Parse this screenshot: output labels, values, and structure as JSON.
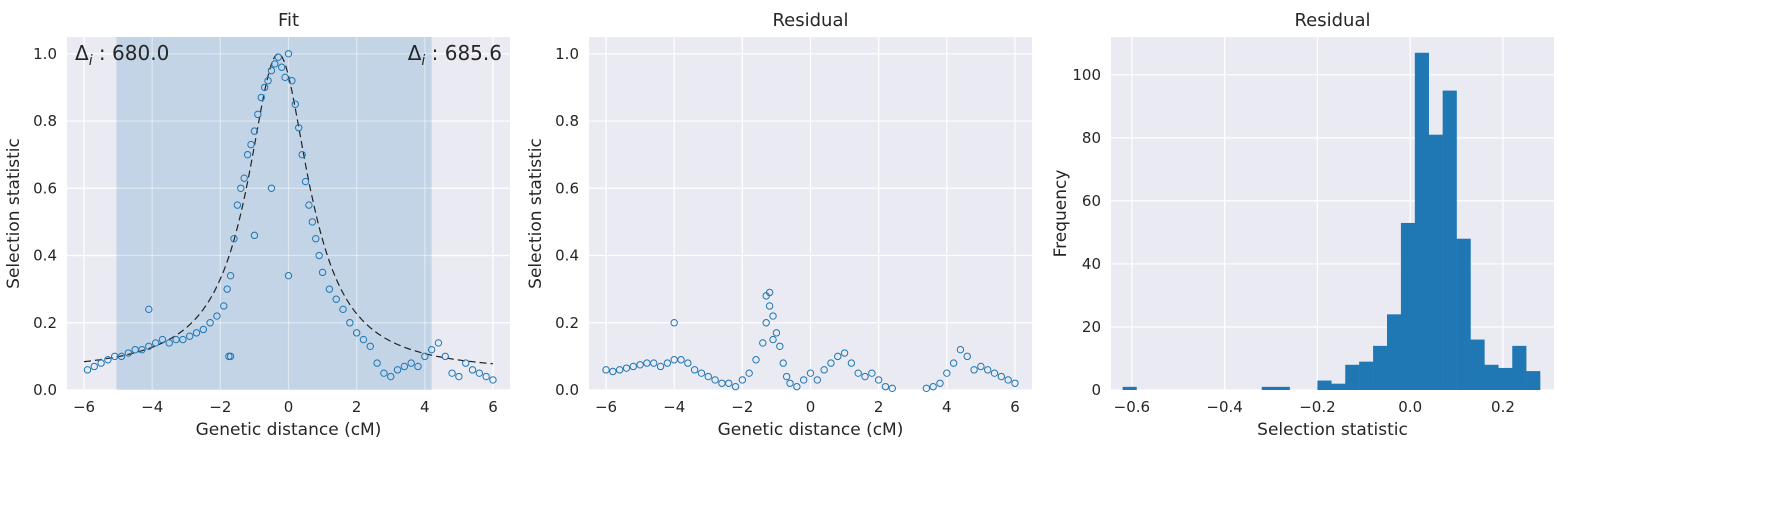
{
  "figure": {
    "colors": {
      "background": "#eaeaf2",
      "grid": "#ffffff",
      "marker": "#1f77b4",
      "fit_line": "#222222",
      "span": "#aec7e0",
      "bar": "#1f77b4"
    }
  },
  "chart_data": [
    {
      "type": "scatter",
      "title": "Fit",
      "xlabel": "Genetic distance (cM)",
      "ylabel": "Selection statistic",
      "xlim": [
        -6.5,
        6.5
      ],
      "ylim": [
        0,
        1.05
      ],
      "xticks": [
        -6,
        -4,
        -2,
        0,
        2,
        4,
        6
      ],
      "xtick_labels": [
        "−6",
        "−4",
        "−2",
        "0",
        "2",
        "4",
        "6"
      ],
      "yticks": [
        0,
        0.2,
        0.4,
        0.6,
        0.8,
        1.0
      ],
      "ytick_labels": [
        "0.0",
        "0.2",
        "0.4",
        "0.6",
        "0.8",
        "1.0"
      ],
      "shaded_span": [
        -5.05,
        4.2
      ],
      "annotations": [
        {
          "text": "Δ",
          "sub": "i",
          "rest": " : 680.0",
          "position": "top-left"
        },
        {
          "text": "Δ",
          "sub": "i",
          "rest": " : 685.6",
          "position": "top-right"
        }
      ],
      "fit_curve": {
        "style": "dashed",
        "peak_x": -0.3,
        "peak_y": 1.0,
        "baseline": 0.05,
        "width_cM": 1.1
      },
      "series": [
        {
          "marker": "open-circle",
          "x": [
            -5.9,
            -5.7,
            -5.5,
            -5.3,
            -5.1,
            -4.9,
            -4.7,
            -4.5,
            -4.3,
            -4.1,
            -3.9,
            -3.7,
            -3.5,
            -3.3,
            -3.1,
            -2.9,
            -2.7,
            -2.5,
            -2.3,
            -2.1,
            -1.9,
            -1.8,
            -1.7,
            -1.6,
            -1.5,
            -1.4,
            -1.3,
            -1.2,
            -1.1,
            -1.0,
            -0.9,
            -0.8,
            -0.7,
            -0.6,
            -0.5,
            -0.4,
            -0.3,
            -0.2,
            -0.1,
            0.0,
            0.1,
            0.2,
            0.3,
            0.4,
            0.5,
            0.6,
            0.7,
            0.8,
            0.9,
            1.0,
            1.2,
            1.4,
            1.6,
            1.8,
            2.0,
            2.2,
            2.4,
            2.6,
            2.8,
            3.0,
            3.2,
            3.4,
            3.6,
            3.8,
            4.0,
            4.2,
            4.4,
            4.6,
            4.8,
            5.0,
            5.2,
            5.4,
            5.6,
            5.8,
            6.0,
            -4.1,
            -1.75,
            -1.7,
            0.0,
            -1.0,
            -0.5
          ],
          "y": [
            0.06,
            0.07,
            0.08,
            0.09,
            0.1,
            0.1,
            0.11,
            0.12,
            0.12,
            0.13,
            0.14,
            0.15,
            0.14,
            0.15,
            0.15,
            0.16,
            0.17,
            0.18,
            0.2,
            0.22,
            0.25,
            0.3,
            0.34,
            0.45,
            0.55,
            0.6,
            0.63,
            0.7,
            0.73,
            0.77,
            0.82,
            0.87,
            0.9,
            0.92,
            0.95,
            0.97,
            0.99,
            0.96,
            0.93,
            1.0,
            0.92,
            0.85,
            0.78,
            0.7,
            0.62,
            0.55,
            0.5,
            0.45,
            0.4,
            0.35,
            0.3,
            0.27,
            0.24,
            0.2,
            0.17,
            0.15,
            0.13,
            0.08,
            0.05,
            0.04,
            0.06,
            0.07,
            0.08,
            0.07,
            0.1,
            0.12,
            0.14,
            0.1,
            0.05,
            0.04,
            0.08,
            0.06,
            0.05,
            0.04,
            0.03,
            0.24,
            0.1,
            0.1,
            0.34,
            0.46,
            0.6
          ]
        }
      ]
    },
    {
      "type": "scatter",
      "title": "Residual",
      "xlabel": "Genetic distance (cM)",
      "ylabel": "Selection statistic",
      "xlim": [
        -6.5,
        6.5
      ],
      "ylim": [
        0,
        1.05
      ],
      "xticks": [
        -6,
        -4,
        -2,
        0,
        2,
        4,
        6
      ],
      "xtick_labels": [
        "−6",
        "−4",
        "−2",
        "0",
        "2",
        "4",
        "6"
      ],
      "yticks": [
        0,
        0.2,
        0.4,
        0.6,
        0.8,
        1.0
      ],
      "ytick_labels": [
        "0.0",
        "0.2",
        "0.4",
        "0.6",
        "0.8",
        "1.0"
      ],
      "series": [
        {
          "marker": "open-circle",
          "x": [
            -6.0,
            -5.8,
            -5.6,
            -5.4,
            -5.2,
            -5.0,
            -4.8,
            -4.6,
            -4.4,
            -4.2,
            -4.0,
            -3.8,
            -3.6,
            -3.4,
            -3.2,
            -3.0,
            -2.8,
            -2.6,
            -2.4,
            -2.2,
            -2.0,
            -1.8,
            -1.6,
            -1.4,
            -1.3,
            -1.2,
            -1.1,
            -1.0,
            -0.9,
            -0.8,
            -0.7,
            -0.6,
            -0.4,
            -0.2,
            0.0,
            0.2,
            0.4,
            0.6,
            0.8,
            1.0,
            1.2,
            1.4,
            1.6,
            1.8,
            2.0,
            2.2,
            2.4,
            3.4,
            3.6,
            3.8,
            4.0,
            4.2,
            4.4,
            4.6,
            4.8,
            5.0,
            5.2,
            5.4,
            5.6,
            5.8,
            6.0,
            -4.0,
            -1.2,
            -1.3,
            -1.1
          ],
          "y": [
            0.06,
            0.055,
            0.06,
            0.065,
            0.07,
            0.075,
            0.08,
            0.08,
            0.07,
            0.08,
            0.09,
            0.09,
            0.08,
            0.06,
            0.05,
            0.04,
            0.03,
            0.02,
            0.02,
            0.01,
            0.03,
            0.05,
            0.09,
            0.14,
            0.2,
            0.25,
            0.22,
            0.17,
            0.13,
            0.08,
            0.04,
            0.02,
            0.01,
            0.03,
            0.05,
            0.03,
            0.06,
            0.08,
            0.1,
            0.11,
            0.08,
            0.05,
            0.04,
            0.05,
            0.03,
            0.01,
            0.005,
            0.005,
            0.01,
            0.02,
            0.05,
            0.08,
            0.12,
            0.1,
            0.06,
            0.07,
            0.06,
            0.05,
            0.04,
            0.03,
            0.02,
            0.2,
            0.29,
            0.28,
            0.15
          ]
        }
      ]
    },
    {
      "type": "bar",
      "title": "Residual",
      "xlabel": "Selection statistic",
      "ylabel": "Frequency",
      "xlim": [
        -0.645,
        0.31
      ],
      "ylim": [
        0,
        112
      ],
      "xticks": [
        -0.6,
        -0.4,
        -0.2,
        0.0,
        0.2
      ],
      "xtick_labels": [
        "−0.6",
        "−0.4",
        "−0.2",
        "0.0",
        "0.2"
      ],
      "yticks": [
        0,
        20,
        40,
        60,
        80,
        100
      ],
      "ytick_labels": [
        "0",
        "20",
        "40",
        "60",
        "80",
        "100"
      ],
      "bin_width": 0.0305,
      "bin_starts": [
        -0.62,
        -0.59,
        -0.56,
        -0.53,
        -0.5,
        -0.47,
        -0.44,
        -0.41,
        -0.38,
        -0.35,
        -0.32,
        -0.29,
        -0.26,
        -0.23,
        -0.2,
        -0.17,
        -0.14,
        -0.11,
        -0.08,
        -0.05,
        -0.02,
        0.01,
        0.04,
        0.07,
        0.1,
        0.13,
        0.16,
        0.19,
        0.22,
        0.25
      ],
      "values": [
        1,
        0,
        0,
        0,
        0,
        0,
        0,
        0,
        0,
        0,
        1,
        1,
        0,
        0,
        3,
        2,
        8,
        9,
        14,
        24,
        53,
        107,
        81,
        95,
        48,
        16,
        8,
        7,
        14,
        6
      ]
    }
  ]
}
